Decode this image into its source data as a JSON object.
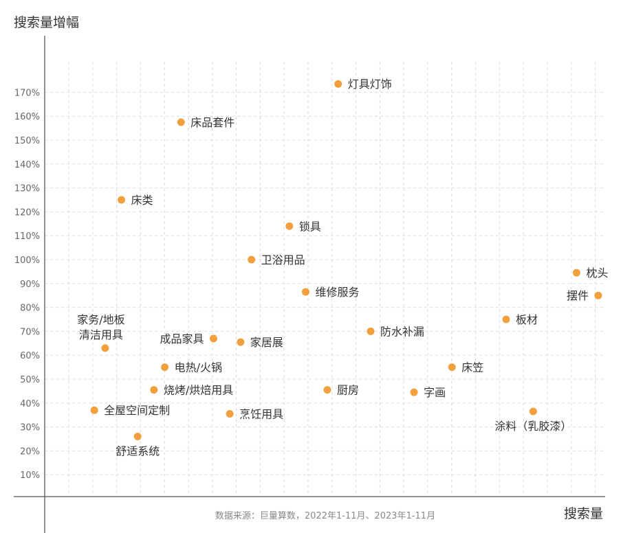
{
  "chart_data": {
    "type": "scatter",
    "ylabel": "搜索量增幅",
    "xlabel": "搜索量",
    "source": "数据来源：巨量算数，2022年1-11月、2023年1-11月",
    "y_ticks": [
      "10%",
      "20%",
      "30%",
      "40%",
      "50%",
      "60%",
      "70%",
      "80%",
      "90%",
      "100%",
      "110%",
      "120%",
      "130%",
      "140%",
      "150%",
      "160%",
      "170%"
    ],
    "ylim": [
      0,
      180
    ],
    "grid": true,
    "point_color": "#F2A03D",
    "points": [
      {
        "label": "灯具灯饰",
        "x": 0.52,
        "y": 173.5
      },
      {
        "label": "床品套件",
        "x": 0.23,
        "y": 157.5
      },
      {
        "label": "床类",
        "x": 0.12,
        "y": 125
      },
      {
        "label": "锁具",
        "x": 0.43,
        "y": 114
      },
      {
        "label": "卫浴用品",
        "x": 0.36,
        "y": 100
      },
      {
        "label": "维修服务",
        "x": 0.46,
        "y": 86.5
      },
      {
        "label": "枕头",
        "x": 0.96,
        "y": 94.5
      },
      {
        "label": "摆件",
        "x": 1.0,
        "y": 85
      },
      {
        "label": "板材",
        "x": 0.83,
        "y": 75
      },
      {
        "label": "防水补漏",
        "x": 0.58,
        "y": 70
      },
      {
        "label": "家务/地板清洁用具",
        "x": 0.09,
        "y": 63
      },
      {
        "label": "成品家具",
        "x": 0.29,
        "y": 67
      },
      {
        "label": "家居展",
        "x": 0.34,
        "y": 65.5
      },
      {
        "label": "电热/火锅",
        "x": 0.2,
        "y": 55
      },
      {
        "label": "床笠",
        "x": 0.73,
        "y": 55
      },
      {
        "label": "烧烤/烘焙用具",
        "x": 0.18,
        "y": 45.5
      },
      {
        "label": "厨房",
        "x": 0.5,
        "y": 45.5
      },
      {
        "label": "字画",
        "x": 0.66,
        "y": 44.5
      },
      {
        "label": "全屋空间定制",
        "x": 0.07,
        "y": 37
      },
      {
        "label": "烹饪用具",
        "x": 0.32,
        "y": 35.5
      },
      {
        "label": "涂料（乳胶漆）",
        "x": 0.88,
        "y": 36.5
      },
      {
        "label": "舒适系统",
        "x": 0.15,
        "y": 26
      }
    ]
  }
}
